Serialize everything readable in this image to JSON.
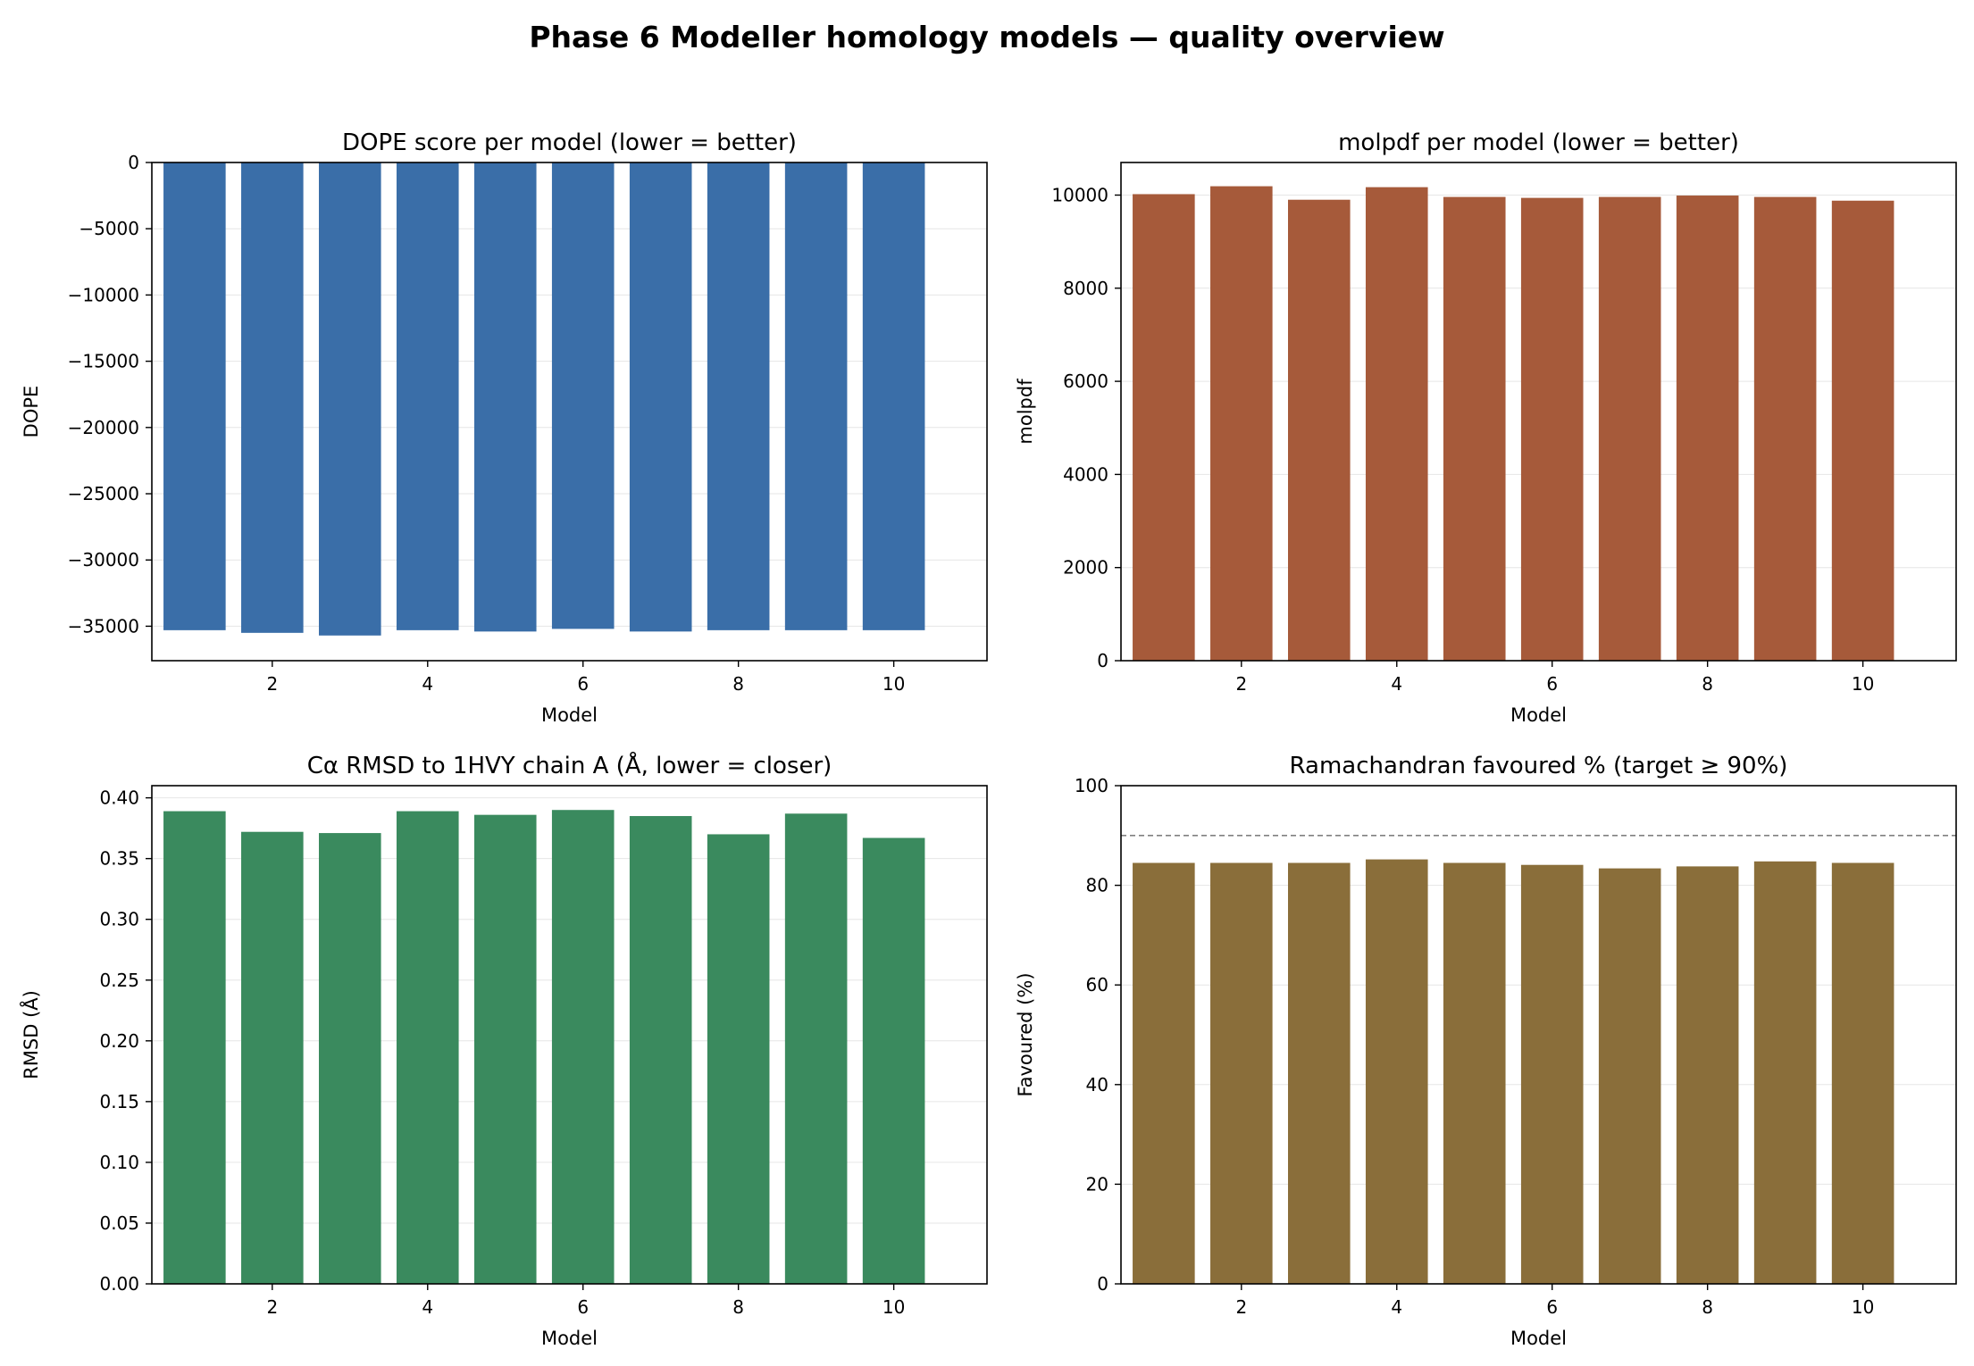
{
  "figure": {
    "title": "Phase 6 Modeller homology models — quality overview"
  },
  "chart_data": [
    {
      "type": "bar",
      "title": "DOPE score per model (lower = better)",
      "xlabel": "Model",
      "ylabel": "DOPE",
      "x": [
        1,
        2,
        3,
        4,
        5,
        6,
        7,
        8,
        9,
        10
      ],
      "values": [
        -35300,
        -35500,
        -35700,
        -35300,
        -35400,
        -35200,
        -35400,
        -35300,
        -35300,
        -35300
      ],
      "xlim": [
        0.45,
        11.2
      ],
      "ylim": [
        -37600,
        0
      ],
      "xticks": [
        2,
        4,
        6,
        8,
        10
      ],
      "xtick_labels": [
        "2",
        "4",
        "6",
        "8",
        "10"
      ],
      "yticks": [
        0,
        -5000,
        -10000,
        -15000,
        -20000,
        -25000,
        -30000,
        -35000
      ],
      "ytick_labels": [
        "0",
        "−5000",
        "−10000",
        "−15000",
        "−20000",
        "−25000",
        "−30000",
        "−35000"
      ],
      "color": "#3a6ea8",
      "grid": "y"
    },
    {
      "type": "bar",
      "title": "molpdf per model (lower = better)",
      "xlabel": "Model",
      "ylabel": "molpdf",
      "x": [
        1,
        2,
        3,
        4,
        5,
        6,
        7,
        8,
        9,
        10
      ],
      "values": [
        10020,
        10190,
        9900,
        10170,
        9960,
        9940,
        9960,
        9990,
        9960,
        9880
      ],
      "xlim": [
        0.45,
        11.2
      ],
      "ylim": [
        0,
        10700
      ],
      "xticks": [
        2,
        4,
        6,
        8,
        10
      ],
      "xtick_labels": [
        "2",
        "4",
        "6",
        "8",
        "10"
      ],
      "yticks": [
        0,
        2000,
        4000,
        6000,
        8000,
        10000
      ],
      "ytick_labels": [
        "0",
        "2000",
        "4000",
        "6000",
        "8000",
        "10000"
      ],
      "color": "#a65a3a",
      "grid": "y"
    },
    {
      "type": "bar",
      "title": "Cα RMSD to 1HVY chain A (Å, lower = closer)",
      "xlabel": "Model",
      "ylabel": "RMSD (Å)",
      "x": [
        1,
        2,
        3,
        4,
        5,
        6,
        7,
        8,
        9,
        10
      ],
      "values": [
        0.389,
        0.372,
        0.371,
        0.389,
        0.386,
        0.39,
        0.385,
        0.37,
        0.387,
        0.367
      ],
      "xlim": [
        0.45,
        11.2
      ],
      "ylim": [
        0,
        0.41
      ],
      "xticks": [
        2,
        4,
        6,
        8,
        10
      ],
      "xtick_labels": [
        "2",
        "4",
        "6",
        "8",
        "10"
      ],
      "yticks": [
        0,
        0.05,
        0.1,
        0.15,
        0.2,
        0.25,
        0.3,
        0.35,
        0.4
      ],
      "ytick_labels": [
        "0.00",
        "0.05",
        "0.10",
        "0.15",
        "0.20",
        "0.25",
        "0.30",
        "0.35",
        "0.40"
      ],
      "color": "#3a8a5e",
      "grid": "y"
    },
    {
      "type": "bar",
      "title": "Ramachandran favoured % (target ≥ 90%)",
      "xlabel": "Model",
      "ylabel": "Favoured (%)",
      "x": [
        1,
        2,
        3,
        4,
        5,
        6,
        7,
        8,
        9,
        10
      ],
      "values": [
        84.5,
        84.5,
        84.5,
        85.2,
        84.5,
        84.1,
        83.4,
        83.8,
        84.8,
        84.5
      ],
      "xlim": [
        0.45,
        11.2
      ],
      "ylim": [
        0,
        100
      ],
      "xticks": [
        2,
        4,
        6,
        8,
        10
      ],
      "xtick_labels": [
        "2",
        "4",
        "6",
        "8",
        "10"
      ],
      "yticks": [
        0,
        20,
        40,
        60,
        80,
        100
      ],
      "ytick_labels": [
        "0",
        "20",
        "40",
        "60",
        "80",
        "100"
      ],
      "color": "#8a6e3a",
      "grid": "y",
      "reference_line": {
        "y": 90,
        "style": "dashed",
        "color": "#808080"
      }
    }
  ]
}
